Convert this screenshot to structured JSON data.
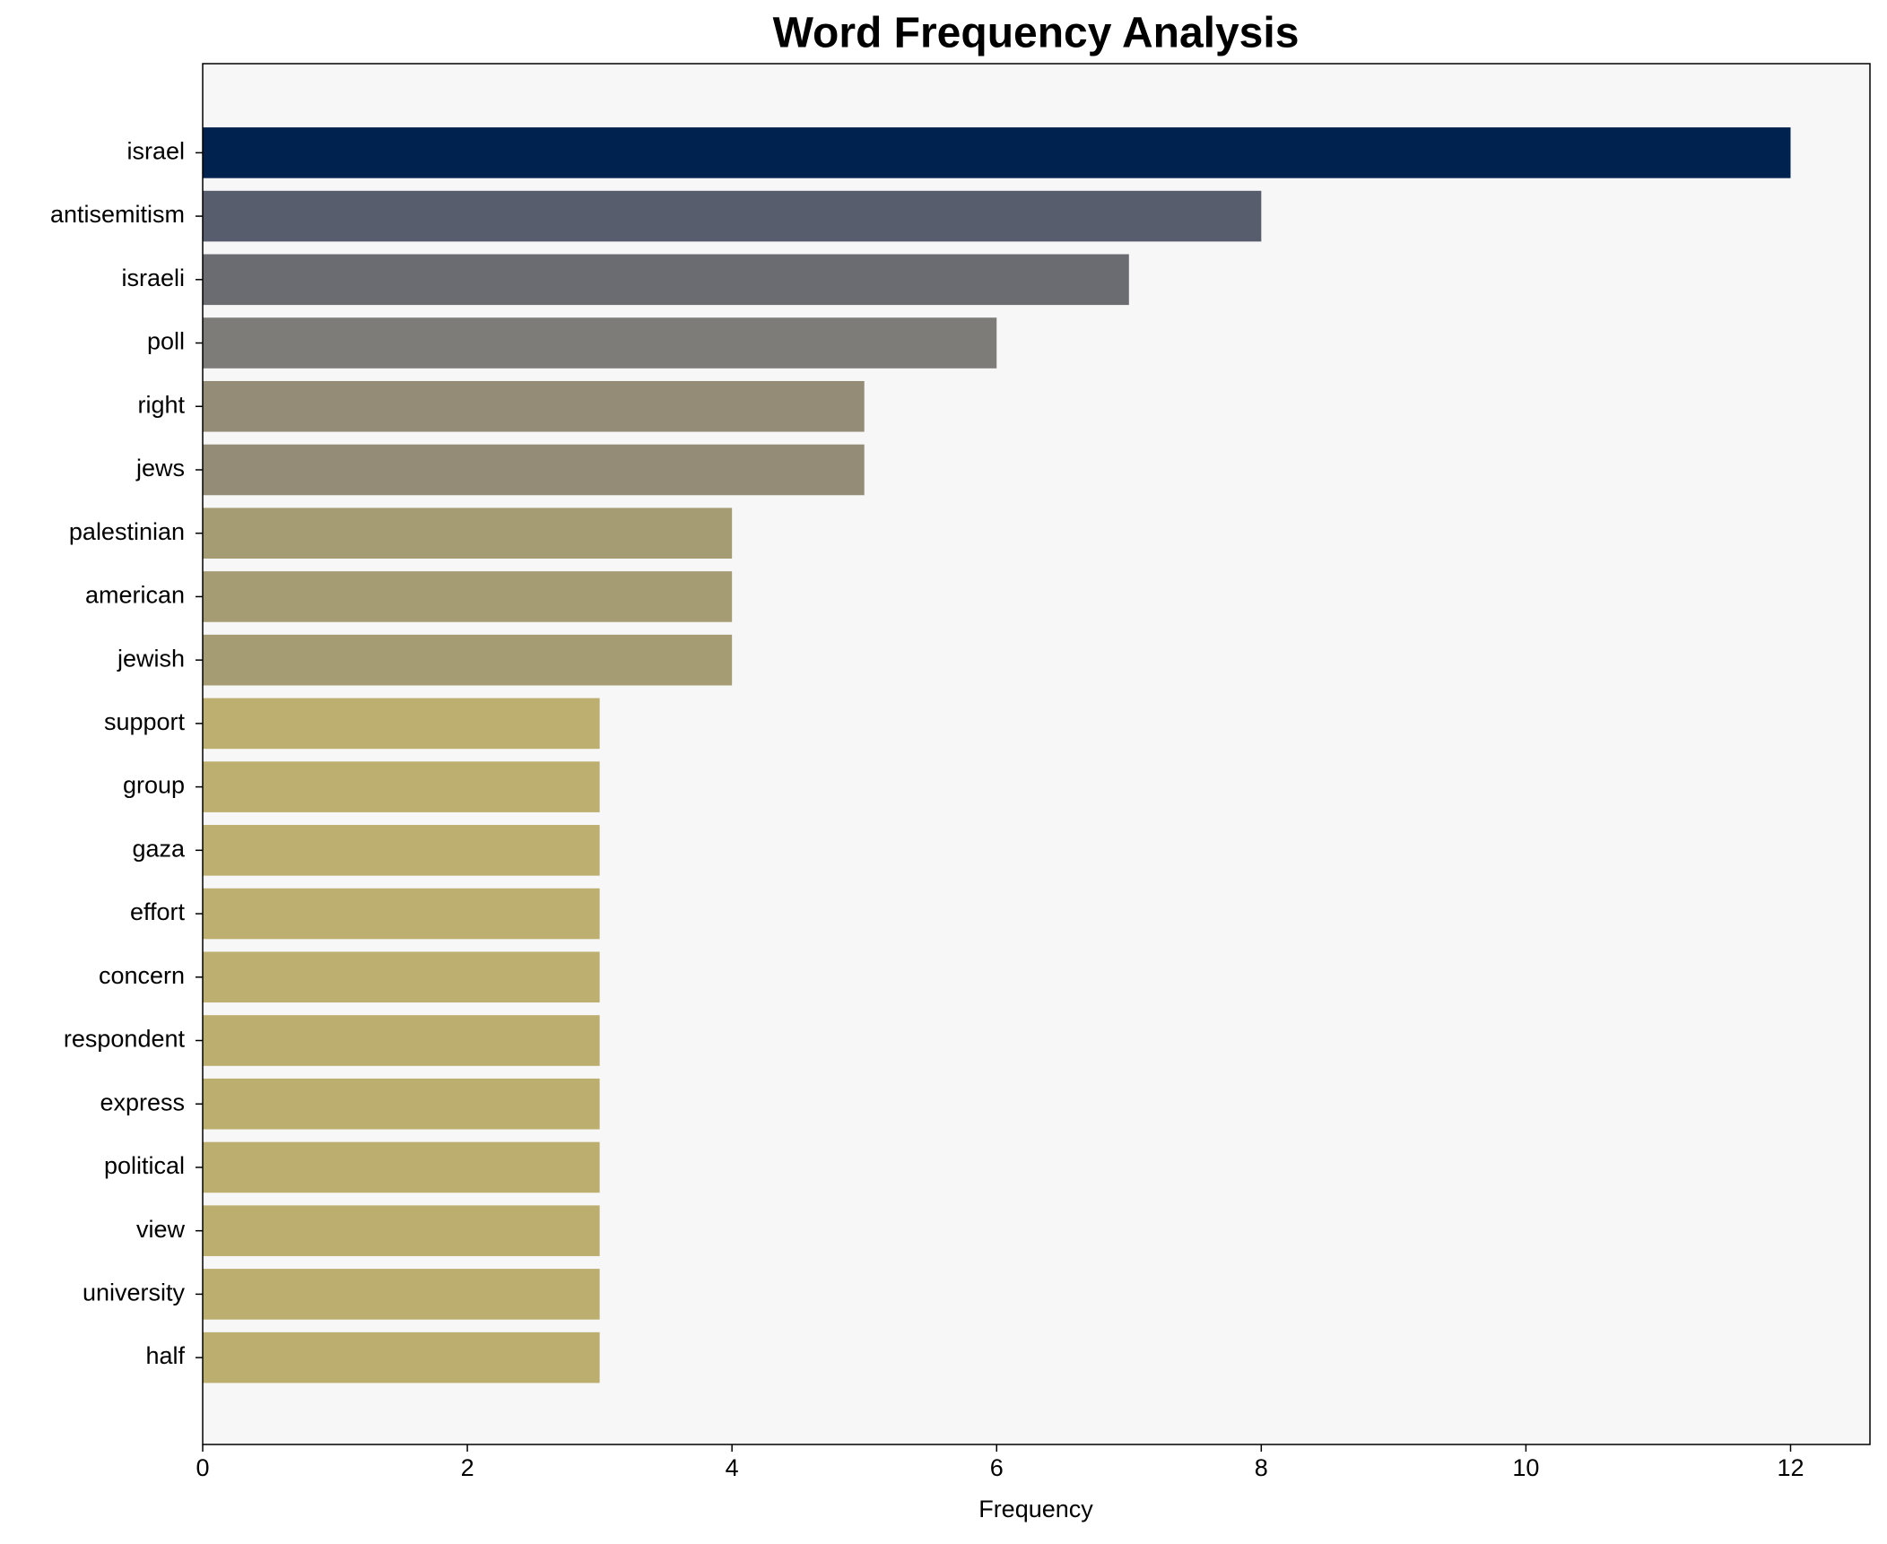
{
  "chart_data": {
    "type": "barh",
    "title": "Word Frequency Analysis",
    "x_label": "Frequency",
    "categories": [
      "israel",
      "antisemitism",
      "israeli",
      "poll",
      "right",
      "jews",
      "palestinian",
      "american",
      "jewish",
      "support",
      "group",
      "gaza",
      "effort",
      "concern",
      "respondent",
      "express",
      "political",
      "view",
      "university",
      "half"
    ],
    "values": [
      12,
      8,
      7,
      6,
      5,
      5,
      4,
      4,
      4,
      3,
      3,
      3,
      3,
      3,
      3,
      3,
      3,
      3,
      3,
      3
    ],
    "colors": [
      "#00224e",
      "#575d6d",
      "#6b6c71",
      "#7d7c78",
      "#948c76",
      "#948c76",
      "#a59c74",
      "#a59c74",
      "#a59c74",
      "#bcaf6f",
      "#bcaf6f",
      "#bcaf6f",
      "#bcaf6f",
      "#bcaf6f",
      "#bbae6f",
      "#bbae6f",
      "#bbae6f",
      "#bbae6f",
      "#bbae6f",
      "#bbae6f"
    ],
    "xlim": [
      0,
      12.6
    ],
    "xticks": [
      0,
      2,
      4,
      6,
      8,
      10,
      12
    ]
  }
}
